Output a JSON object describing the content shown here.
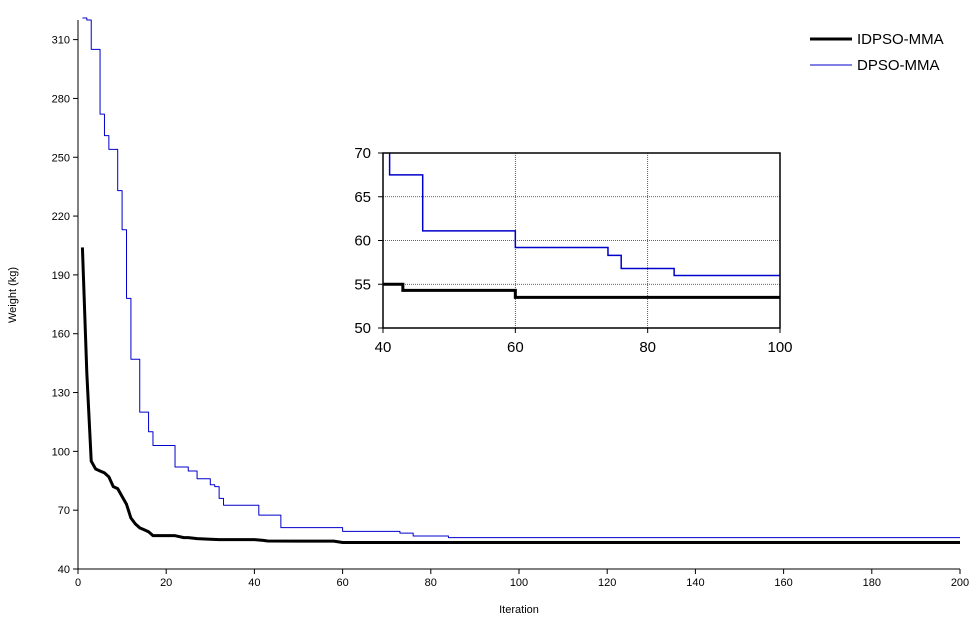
{
  "chart_data": [
    {
      "type": "line",
      "title": "",
      "xlabel": "Iteration",
      "ylabel": "Weight (kg)",
      "xlim": [
        0,
        200
      ],
      "ylim": [
        40,
        320
      ],
      "xticks": [
        0,
        20,
        40,
        60,
        80,
        100,
        120,
        140,
        160,
        180,
        200
      ],
      "yticks": [
        40,
        70,
        100,
        130,
        160,
        190,
        220,
        250,
        280,
        310
      ],
      "grid": false,
      "legend_position": "top-right",
      "series": [
        {
          "name": "IDPSO-MMA",
          "color": "#000000",
          "line_width": "thick",
          "step": false,
          "x": [
            1,
            2,
            3,
            4,
            5,
            6,
            7,
            8,
            9,
            10,
            11,
            12,
            13,
            14,
            15,
            16,
            17,
            18,
            20,
            22,
            24,
            25,
            27,
            30,
            32,
            35,
            40,
            42,
            43,
            50,
            58,
            60,
            80,
            100,
            120,
            140,
            160,
            180,
            200
          ],
          "y": [
            204,
            140,
            95,
            91,
            90,
            89,
            87,
            82,
            81,
            77,
            73,
            66,
            63,
            61,
            60,
            59,
            57,
            57,
            57,
            57,
            56,
            56,
            55.5,
            55.2,
            55,
            55,
            55,
            54.6,
            54.3,
            54.2,
            54.2,
            53.5,
            53.5,
            53.5,
            53.5,
            53.5,
            53.5,
            53.5,
            53.5
          ]
        },
        {
          "name": "DPSO-MMA",
          "color": "#0000cc",
          "line_width": "thin",
          "step": true,
          "x": [
            1,
            2,
            3,
            4,
            5,
            6,
            7,
            8,
            9,
            10,
            11,
            12,
            13,
            14,
            15,
            16,
            17,
            20,
            22,
            24,
            25,
            27,
            29,
            30,
            31,
            32,
            33,
            41,
            46,
            59,
            60,
            73,
            74,
            76,
            84,
            200
          ],
          "y": [
            321,
            320,
            305,
            305,
            272,
            261,
            254,
            254,
            233,
            213,
            178,
            147,
            147,
            120,
            120,
            110,
            103,
            103,
            92,
            92,
            90,
            86,
            86,
            83,
            82,
            76,
            72.5,
            67.5,
            61.1,
            61.1,
            59.2,
            58.3,
            58.3,
            56.8,
            56,
            56
          ]
        }
      ]
    },
    {
      "type": "line",
      "title": "",
      "xlabel": "",
      "ylabel": "",
      "xlim": [
        40,
        100
      ],
      "ylim": [
        50,
        70
      ],
      "xticks": [
        40,
        60,
        80,
        100
      ],
      "yticks": [
        50,
        55,
        60,
        65,
        70
      ],
      "grid": true,
      "series": [
        {
          "name": "IDPSO-MMA",
          "color": "#000000",
          "line_width": "thick",
          "step": true,
          "x": [
            40,
            42,
            43,
            59,
            60,
            100
          ],
          "y": [
            55,
            55,
            54.3,
            54.3,
            53.5,
            53.5
          ]
        },
        {
          "name": "DPSO-MMA",
          "color": "#0000cc",
          "line_width": "thin",
          "step": true,
          "x": [
            40.5,
            41,
            46,
            59,
            60,
            73,
            74,
            76,
            84,
            100
          ],
          "y": [
            71,
            67.5,
            61.1,
            61.1,
            59.2,
            59.2,
            58.3,
            56.8,
            56,
            56
          ]
        }
      ]
    }
  ]
}
